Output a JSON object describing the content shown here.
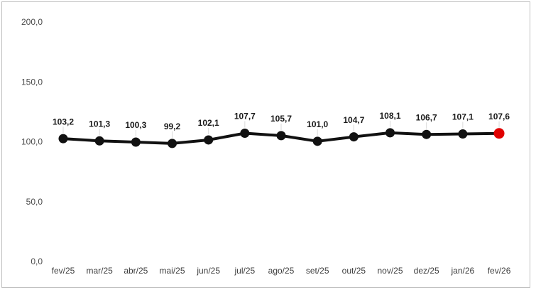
{
  "chart_data": {
    "type": "line",
    "title": "",
    "xlabel": "",
    "ylabel": "",
    "categories": [
      "fev/25",
      "mar/25",
      "abr/25",
      "mai/25",
      "jun/25",
      "jul/25",
      "ago/25",
      "set/25",
      "out/25",
      "nov/25",
      "dez/25",
      "jan/26",
      "fev/26"
    ],
    "values": [
      103.2,
      101.3,
      100.3,
      99.2,
      102.1,
      107.7,
      105.7,
      101.0,
      104.7,
      108.1,
      106.7,
      107.1,
      107.6
    ],
    "value_labels": [
      "103,2",
      "101,3",
      "100,3",
      "99,2",
      "102,1",
      "107,7",
      "105,7",
      "101,0",
      "104,7",
      "108,1",
      "106,7",
      "107,1",
      "107,6"
    ],
    "ylim": [
      0,
      200
    ],
    "yticks": [
      {
        "value": 0,
        "label": "0,0"
      },
      {
        "value": 50,
        "label": "50,0"
      },
      {
        "value": 100,
        "label": "100,0"
      },
      {
        "value": 150,
        "label": "150,0"
      },
      {
        "value": 200,
        "label": "200,0"
      }
    ],
    "grid": false,
    "legend": "none",
    "series_color": "#111111",
    "highlight_index": 12,
    "highlight_color": "#e00000",
    "leader_line_color": "#d9d9d9",
    "axis_text_color": "#4a4a4a",
    "frame_border_color": "#bfbfbf",
    "background_color": "#ffffff"
  }
}
